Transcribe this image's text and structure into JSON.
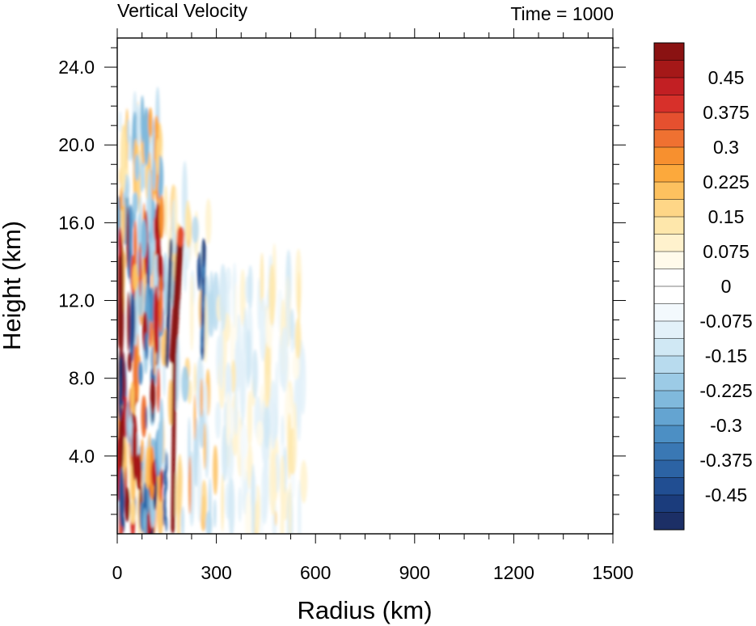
{
  "chart_data": {
    "type": "heatmap",
    "title_left": "Vertical Velocity",
    "title_right": "Time = 1000",
    "xlabel": "Radius (km)",
    "ylabel": "Height (km)",
    "xlim": [
      0,
      1500
    ],
    "ylim": [
      0,
      25.5
    ],
    "x_ticks": [
      {
        "value": 0,
        "label": "0"
      },
      {
        "value": 300,
        "label": "300"
      },
      {
        "value": 600,
        "label": "600"
      },
      {
        "value": 900,
        "label": "900"
      },
      {
        "value": 1200,
        "label": "1200"
      },
      {
        "value": 1500,
        "label": "1500"
      }
    ],
    "y_ticks": [
      {
        "value": 4,
        "label": "4.0"
      },
      {
        "value": 8,
        "label": "8.0"
      },
      {
        "value": 12,
        "label": "12.0"
      },
      {
        "value": 16,
        "label": "16.0"
      },
      {
        "value": 20,
        "label": "20.0"
      },
      {
        "value": 24,
        "label": "24.0"
      }
    ],
    "colorbar": {
      "levels_top_to_bottom": [
        "0.45",
        "0.375",
        "0.3",
        "0.225",
        "0.15",
        "0.075",
        "0",
        "-0.075",
        "-0.15",
        "-0.225",
        "-0.3",
        "-0.375",
        "-0.45"
      ],
      "colors_top_to_bottom": [
        "#8a1212",
        "#a51818",
        "#c21f23",
        "#d7302a",
        "#e5502f",
        "#ef7131",
        "#f7902f",
        "#fca93c",
        "#fdc15f",
        "#fed687",
        "#fee7ab",
        "#fff2cd",
        "#fffaeb",
        "#ffffff",
        "#ffffff",
        "#f3f9fd",
        "#e3f1f9",
        "#d0e8f4",
        "#b8dbee",
        "#9ccbe6",
        "#80b9dc",
        "#64a4d1",
        "#4c8fc4",
        "#3a78b4",
        "#2c63a4",
        "#214e92",
        "#1b3c7c",
        "#1c2f66"
      ]
    },
    "features": [
      {
        "type": "updraft",
        "r_km": [
          150,
          220
        ],
        "z_km": [
          0.3,
          15.5
        ],
        "w_max": 0.5
      },
      {
        "type": "downdraft",
        "r_km": [
          240,
          290
        ],
        "z_km": [
          9,
          15
        ],
        "w_min": -0.45
      },
      {
        "type": "downdraft",
        "r_km": [
          0,
          30
        ],
        "z_km": [
          6,
          10
        ],
        "w_min": -0.5
      },
      {
        "type": "updraft",
        "r_km": [
          0,
          40
        ],
        "z_km": [
          9,
          15.5
        ],
        "w_max": 0.5
      }
    ]
  }
}
